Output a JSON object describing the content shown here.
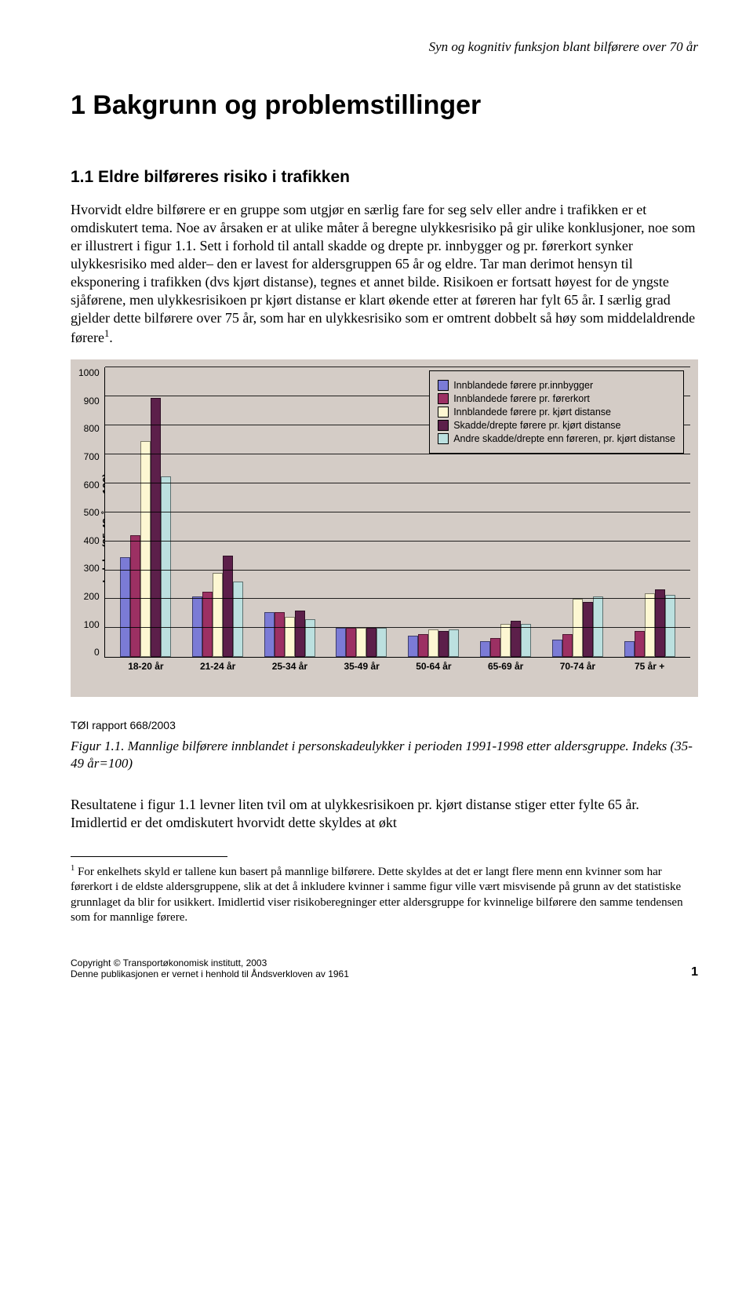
{
  "running_head": "Syn og kognitiv funksjon blant bilførere over 70 år",
  "title": "1 Bakgrunn og problemstillinger",
  "subtitle": "1.1 Eldre bilføreres risiko i trafikken",
  "body_p1": "Hvorvidt eldre bilførere er en gruppe som utgjør en særlig fare for seg selv eller andre i trafikken er et omdiskutert tema. Noe av årsaken er at ulike måter å beregne ulykkesrisiko på gir ulike konklusjoner, noe som er illustrert i figur 1.1. Sett i forhold til antall skadde og drepte pr. innbygger og pr. førerkort synker ulykkesrisiko med alder– den er lavest for aldersgruppen 65 år og eldre. Tar man derimot hensyn til eksponering i trafikken (dvs kjørt distanse), tegnes et annet bilde. Risikoen er fortsatt høyest for de yngste sjåførene, men ulykkesrisikoen pr kjørt distanse er klart økende etter at føreren har fylt 65 år. I særlig grad gjelder dette bilførere over 75 år, som har en ulykkesrisiko som er omtrent dobbelt så høy som middelaldrende førere",
  "body_p1_sup": "1",
  "body_p1_tail": ".",
  "report_ref": "TØI rapport 668/2003",
  "fig_caption": "Figur  1.1. Mannlige bilførere innblandet i personskadeulykker i perioden 1991-1998 etter aldersgruppe. Indeks (35-49 år=100)",
  "body_p2": "Resultatene i figur 1.1 levner liten tvil om at ulykkesrisikoen pr. kjørt distanse stiger etter fylte 65 år. Imidlertid er det omdiskutert hvorvidt dette skyldes at økt",
  "footnote_sup": "1",
  "footnote": " For enkelhets skyld er tallene kun basert på mannlige bilførere. Dette skyldes at det er langt flere menn enn kvinner som har førerkort i de eldste aldersgruppene, slik at det å inkludere kvinner i samme figur ville vært misvisende på grunn av det statistiske grunnlaget da blir for usikkert. Imidlertid viser risikoberegninger etter aldersgruppe for kvinnelige bilførere den samme tendensen som for mannlige førere.",
  "footer_left_l1": "Copyright © Transportøkonomisk institutt, 2003",
  "footer_left_l2": "Denne publikasjonen er vernet i henhold til Åndsverkloven av 1961",
  "page_number": "1",
  "chart": {
    "type": "bar",
    "ylabel": "Indeks (35-49 år = 100)",
    "ylim": [
      0,
      1000
    ],
    "ytick_step": 100,
    "y_ticks": [
      "1000",
      "900",
      "800",
      "700",
      "600",
      "500",
      "400",
      "300",
      "200",
      "100",
      "0"
    ],
    "background_color": "#d4ccc6",
    "grid_color": "#000000",
    "categories": [
      "18-20 år",
      "21-24 år",
      "25-34 år",
      "35-49 år",
      "50-64 år",
      "65-69 år",
      "70-74 år",
      "75 år +"
    ],
    "series": [
      {
        "label": "Innblandede førere pr.innbygger",
        "color": "#7b7bd6",
        "values": [
          345,
          210,
          155,
          100,
          75,
          55,
          60,
          55
        ]
      },
      {
        "label": "Innblandede førere pr. førerkort",
        "color": "#9c3063",
        "values": [
          420,
          225,
          155,
          100,
          80,
          65,
          80,
          90
        ]
      },
      {
        "label": "Innblandede førere pr. kjørt distanse",
        "color": "#fdf7d2",
        "values": [
          745,
          290,
          140,
          100,
          95,
          115,
          200,
          220
        ]
      },
      {
        "label": "Skadde/drepte førere pr. kjørt distanse",
        "color": "#5c1f4a",
        "values": [
          895,
          350,
          160,
          100,
          90,
          125,
          190,
          235
        ]
      },
      {
        "label": "Andre skadde/drepte enn føreren, pr. kjørt distanse",
        "color": "#bce0df",
        "values": [
          625,
          260,
          130,
          100,
          95,
          115,
          210,
          215
        ]
      }
    ]
  }
}
